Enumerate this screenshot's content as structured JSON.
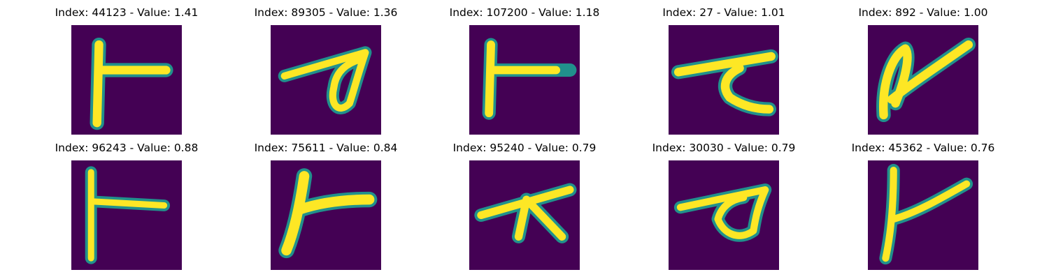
{
  "figure": {
    "colormap_low": "#440154",
    "colormap_mid": "#21918c",
    "colormap_high": "#fde725",
    "panels": [
      {
        "title": "Index: 44123 - Value: 1.41",
        "glyph": "t-shape"
      },
      {
        "title": "Index: 89305 - Value: 1.36",
        "glyph": "loop-stroke"
      },
      {
        "title": "Index: 107200 - Value: 1.18",
        "glyph": "t-shape"
      },
      {
        "title": "Index: 27 - Value: 1.01",
        "glyph": "hook-stroke"
      },
      {
        "title": "Index: 892 - Value: 1.00",
        "glyph": "loop-stroke"
      },
      {
        "title": "Index: 96243 - Value: 0.88",
        "glyph": "t-shape"
      },
      {
        "title": "Index: 75611 - Value: 0.84",
        "glyph": "y-shape"
      },
      {
        "title": "Index: 95240 - Value: 0.79",
        "glyph": "tripod-stroke"
      },
      {
        "title": "Index: 30030 - Value: 0.79",
        "glyph": "loop-stroke"
      },
      {
        "title": "Index: 45362 - Value: 0.76",
        "glyph": "y-shape"
      }
    ]
  }
}
